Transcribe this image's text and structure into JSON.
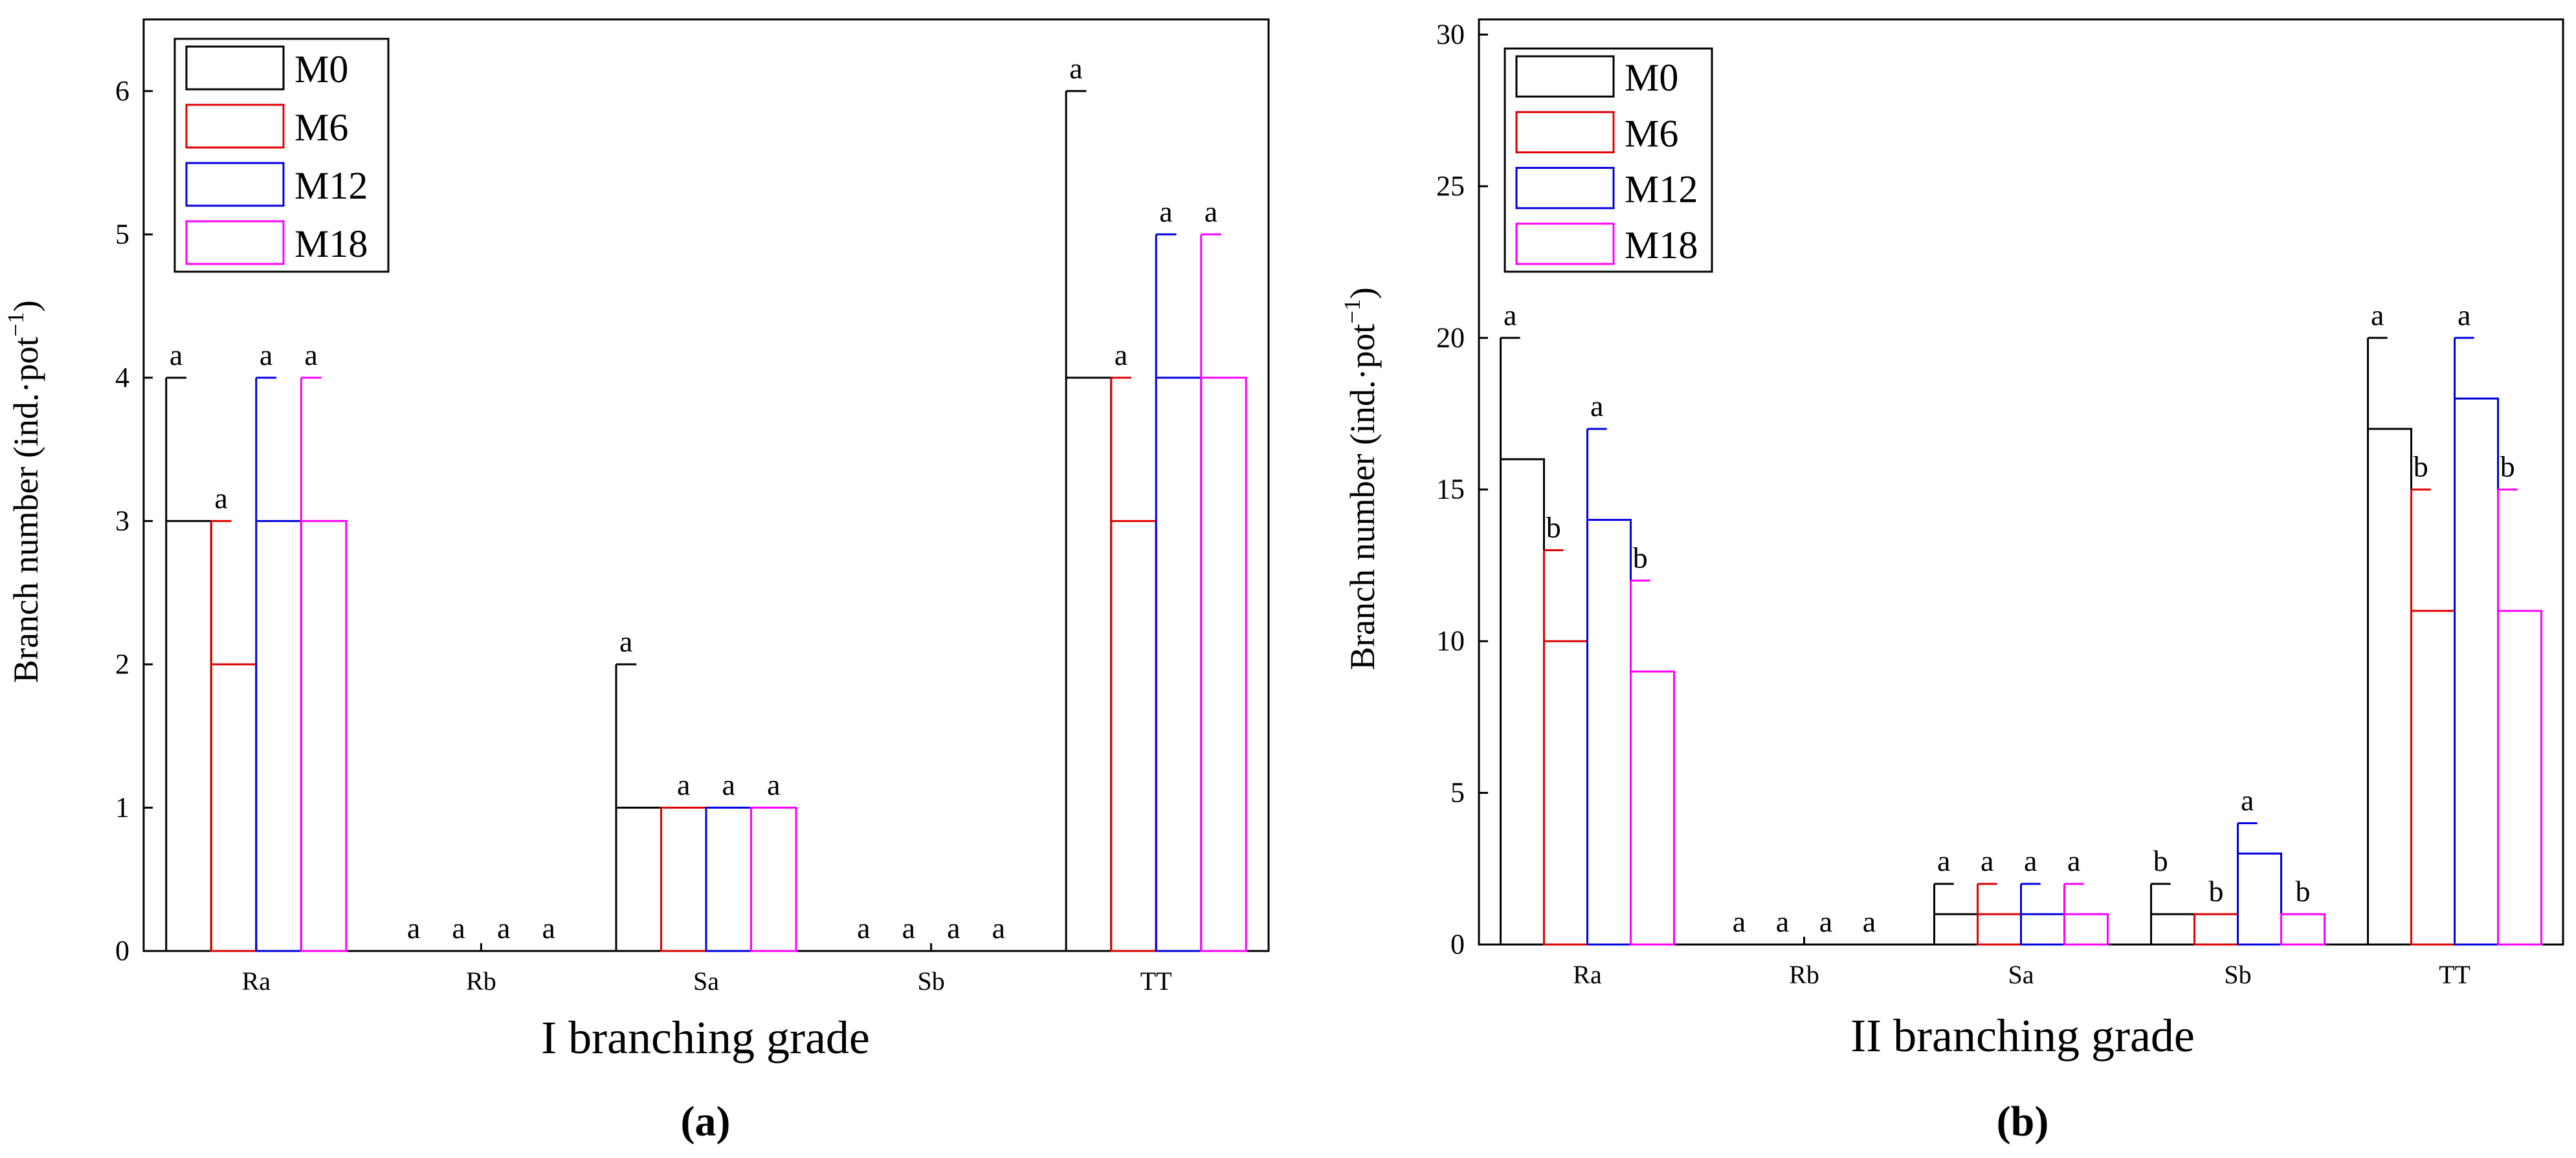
{
  "legend": [
    {
      "name": "M0",
      "color": "#000000"
    },
    {
      "name": "M6",
      "color": "#e00000"
    },
    {
      "name": "M12",
      "color": "#0000e0"
    },
    {
      "name": "M18",
      "color": "#ff00ff"
    }
  ],
  "chart_data": [
    {
      "type": "bar",
      "panel_label": "(a)",
      "xlabel": "I  branching grade",
      "ylabel": "Branch number (ind.·pot",
      "ylabel_sup": "−1",
      "ylabel_end": ")",
      "categories": [
        "Ra",
        "Rb",
        "Sa",
        "Sb",
        "TT"
      ],
      "ylim": [
        0,
        6.5
      ],
      "yticks": [
        "0",
        "1",
        "2",
        "3",
        "4",
        "5",
        "6"
      ],
      "legend_position": "top-left",
      "series": [
        {
          "name": "M0",
          "values": [
            3,
            0,
            1,
            0,
            4
          ],
          "errors": [
            4,
            0,
            2,
            0,
            6
          ],
          "letters": [
            "a",
            "a",
            "a",
            "a",
            "a"
          ]
        },
        {
          "name": "M6",
          "values": [
            2,
            0,
            1,
            0,
            3
          ],
          "errors": [
            3,
            0,
            1,
            0,
            4
          ],
          "letters": [
            "a",
            "a",
            "a",
            "a",
            "a"
          ]
        },
        {
          "name": "M12",
          "values": [
            3,
            0,
            1,
            0,
            4
          ],
          "errors": [
            4,
            0,
            1,
            0,
            5
          ],
          "letters": [
            "a",
            "a",
            "a",
            "a",
            "a"
          ]
        },
        {
          "name": "M18",
          "values": [
            3,
            0,
            1,
            0,
            4
          ],
          "errors": [
            4,
            0,
            1,
            0,
            5
          ],
          "letters": [
            "a",
            "a",
            "a",
            "a",
            "a"
          ]
        }
      ]
    },
    {
      "type": "bar",
      "panel_label": "(b)",
      "xlabel": "II  branching grade",
      "ylabel": "Branch number (ind.·pot",
      "ylabel_sup": "−1",
      "ylabel_end": ")",
      "categories": [
        "Ra",
        "Rb",
        "Sa",
        "Sb",
        "TT"
      ],
      "ylim": [
        0,
        30.5
      ],
      "yticks": [
        "0",
        "5",
        "10",
        "15",
        "20",
        "25",
        "30"
      ],
      "legend_position": "top-left",
      "series": [
        {
          "name": "M0",
          "values": [
            16,
            0,
            1,
            1,
            17
          ],
          "errors": [
            20,
            0,
            2,
            2,
            20
          ],
          "letters": [
            "a",
            "a",
            "a",
            "b",
            "a"
          ]
        },
        {
          "name": "M6",
          "values": [
            10,
            0,
            1,
            1,
            11
          ],
          "errors": [
            13,
            0,
            2,
            1,
            15
          ],
          "letters": [
            "b",
            "a",
            "a",
            "b",
            "b"
          ]
        },
        {
          "name": "M12",
          "values": [
            14,
            0,
            1,
            3,
            18
          ],
          "errors": [
            17,
            0,
            2,
            4,
            20
          ],
          "letters": [
            "a",
            "a",
            "a",
            "a",
            "a"
          ]
        },
        {
          "name": "M18",
          "values": [
            9,
            0,
            1,
            1,
            11
          ],
          "errors": [
            12,
            0,
            2,
            1,
            15
          ],
          "letters": [
            "b",
            "a",
            "a",
            "b",
            "b"
          ]
        }
      ]
    }
  ]
}
